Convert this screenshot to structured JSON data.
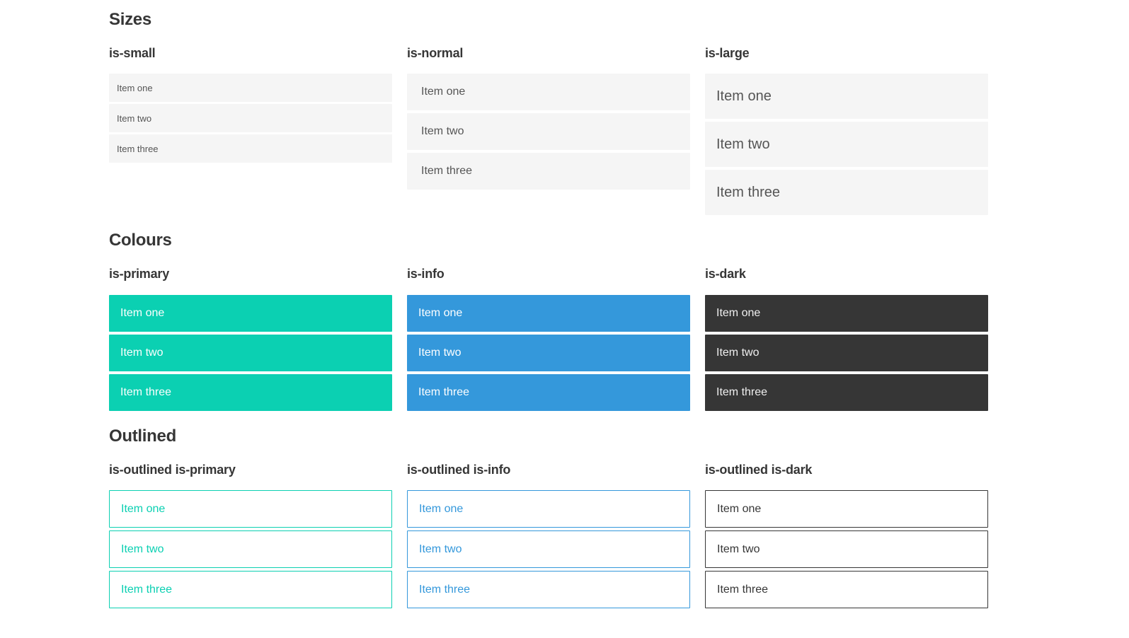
{
  "colors": {
    "page_background": "#ffffff",
    "heading_text": "#363636",
    "item_background_gray": "#f5f5f5",
    "item_text_gray": "#555555",
    "primary_teal": "#0bd0b2",
    "info_blue": "#3498db",
    "dark_gray": "#363636",
    "item_text_on_color": "#ffffff"
  },
  "items": [
    "Item one",
    "Item two",
    "Item three"
  ],
  "sections": [
    {
      "title": "Sizes",
      "columns": [
        {
          "label": "is-small",
          "variant": "small"
        },
        {
          "label": "is-normal",
          "variant": "normal"
        },
        {
          "label": "is-large",
          "variant": "large"
        }
      ]
    },
    {
      "title": "Colours",
      "columns": [
        {
          "label": "is-primary",
          "variant": "primary"
        },
        {
          "label": "is-info",
          "variant": "info"
        },
        {
          "label": "is-dark",
          "variant": "dark"
        }
      ]
    },
    {
      "title": "Outlined",
      "columns": [
        {
          "label": "is-outlined is-primary",
          "variant": "outlined-primary"
        },
        {
          "label": "is-outlined is-info",
          "variant": "outlined-info"
        },
        {
          "label": "is-outlined is-dark",
          "variant": "outlined-dark"
        }
      ]
    }
  ]
}
